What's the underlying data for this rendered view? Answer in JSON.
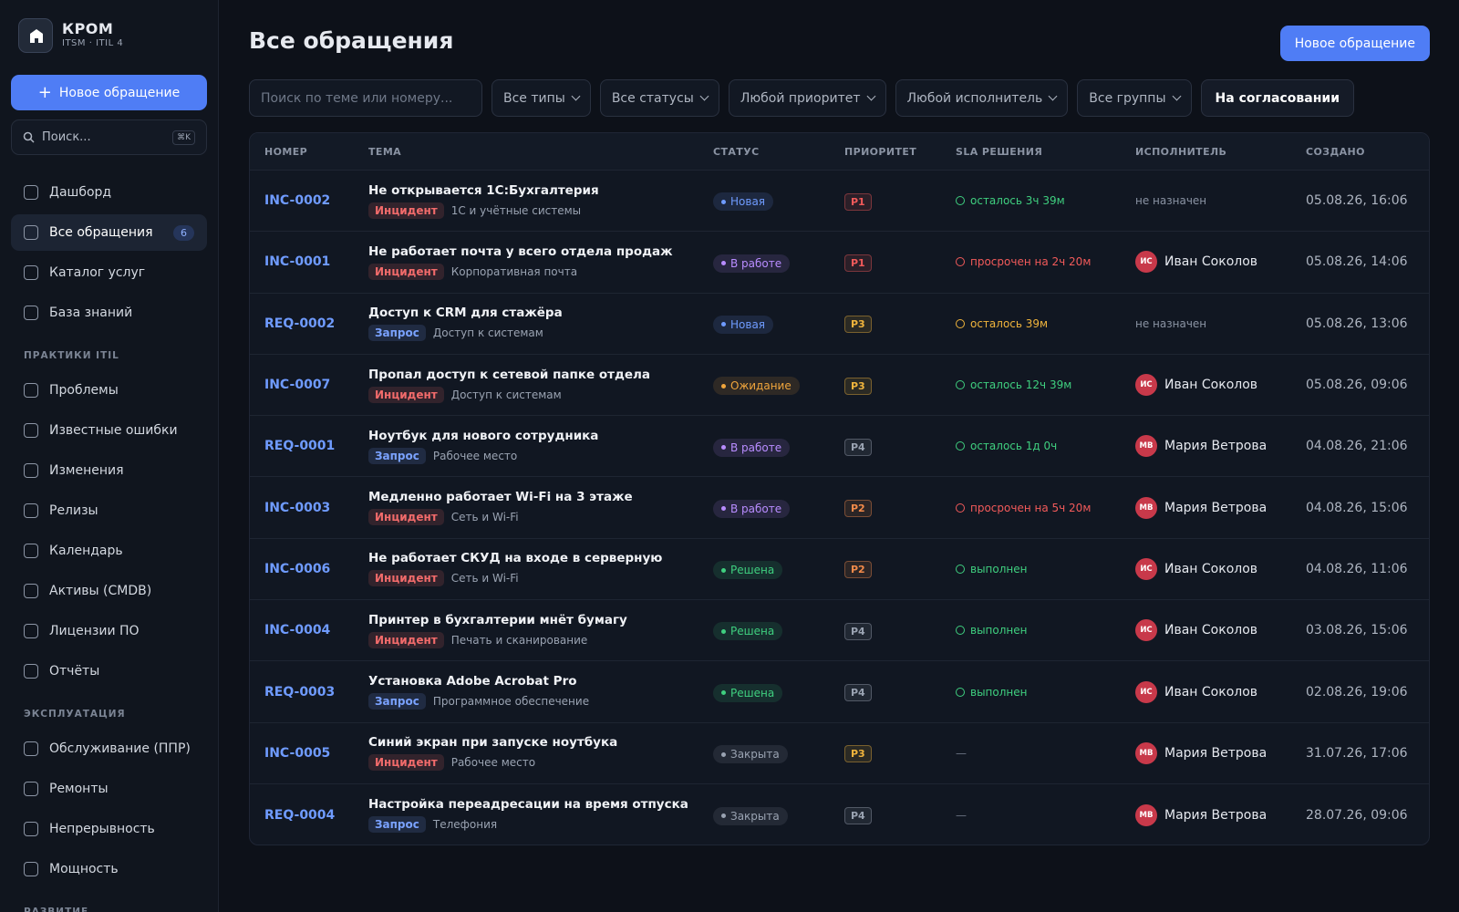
{
  "sidebar": {
    "brand": {
      "name": "КРОМ",
      "subtitle": "ITSM · ITIL 4"
    },
    "new_button": "Новое обращение",
    "search": {
      "placeholder": "Поиск...",
      "shortcut": "⌘K"
    },
    "nav": [
      {
        "label": "Дашборд"
      },
      {
        "label": "Все обращения",
        "badge": 6,
        "active": true
      },
      {
        "label": "Каталог услуг"
      },
      {
        "label": "База знаний"
      }
    ],
    "sections": [
      {
        "title": "ПРАКТИКИ ITIL",
        "items": [
          "Проблемы",
          "Известные ошибки",
          "Изменения",
          "Релизы",
          "Календарь",
          "Активы (CMDB)",
          "Лицензии ПО",
          "Отчёты"
        ]
      },
      {
        "title": "ЭКСПЛУАТАЦИЯ",
        "items": [
          "Обслуживание (ППР)",
          "Ремонты",
          "Непрерывность",
          "Мощность"
        ]
      },
      {
        "title": "РАЗВИТИЕ",
        "items": []
      }
    ]
  },
  "header": {
    "title": "Все обращения",
    "new_button": "Новое обращение"
  },
  "filters": {
    "search_placeholder": "Поиск по теме или номеру...",
    "dropdowns": [
      "Все типы",
      "Все статусы",
      "Любой приоритет",
      "Любой исполнитель",
      "Все группы"
    ],
    "toggle": "На согласовании"
  },
  "table": {
    "columns": [
      "НОМЕР",
      "ТЕМА",
      "СТАТУС",
      "ПРИОРИТЕТ",
      "SLA РЕШЕНИЯ",
      "ИСПОЛНИТЕЛЬ",
      "СОЗДАНО"
    ],
    "rows": [
      {
        "number": "INC-0002",
        "subject": "Не открывается 1С:Бухгалтерия",
        "type": {
          "label": "Инцидент",
          "color": "#f26b6b"
        },
        "category": "1С и учётные системы",
        "status": {
          "label": "Новая",
          "color": "#6f9bff"
        },
        "priority": {
          "label": "P1",
          "color": "#f25a5a"
        },
        "sla": {
          "text": "осталось 3ч 39м",
          "color": "#3fcf7f",
          "icon": true
        },
        "assignee": {
          "name": "не назначен"
        },
        "created": "05.08.26, 16:06"
      },
      {
        "number": "INC-0001",
        "subject": "Не работает почта у всего отдела продаж",
        "type": {
          "label": "Инцидент",
          "color": "#f26b6b"
        },
        "category": "Корпоративная почта",
        "status": {
          "label": "В работе",
          "color": "#b88cff"
        },
        "priority": {
          "label": "P1",
          "color": "#f25a5a"
        },
        "sla": {
          "text": "просрочен на 2ч 20м",
          "color": "#f25a5a",
          "icon": true
        },
        "assignee": {
          "initials": "ИС",
          "name": "Иван Соколов"
        },
        "created": "05.08.26, 14:06"
      },
      {
        "number": "REQ-0002",
        "subject": "Доступ к CRM для стажёра",
        "type": {
          "label": "Запрос",
          "color": "#7aa2ff"
        },
        "category": "Доступ к системам",
        "status": {
          "label": "Новая",
          "color": "#6f9bff"
        },
        "priority": {
          "label": "P3",
          "color": "#f0b43c"
        },
        "sla": {
          "text": "осталось 39м",
          "color": "#f0b43c",
          "icon": true
        },
        "assignee": {
          "name": "не назначен"
        },
        "created": "05.08.26, 13:06"
      },
      {
        "number": "INC-0007",
        "subject": "Пропал доступ к сетевой папке отдела",
        "type": {
          "label": "Инцидент",
          "color": "#f26b6b"
        },
        "category": "Доступ к системам",
        "status": {
          "label": "Ожидание",
          "color": "#f0a53c"
        },
        "priority": {
          "label": "P3",
          "color": "#f0b43c"
        },
        "sla": {
          "text": "осталось 12ч 39м",
          "color": "#3fcf7f",
          "icon": true
        },
        "assignee": {
          "initials": "ИС",
          "name": "Иван Соколов"
        },
        "created": "05.08.26, 09:06"
      },
      {
        "number": "REQ-0001",
        "subject": "Ноутбук для нового сотрудника",
        "type": {
          "label": "Запрос",
          "color": "#7aa2ff"
        },
        "category": "Рабочее место",
        "status": {
          "label": "В работе",
          "color": "#b88cff"
        },
        "priority": {
          "label": "P4",
          "color": "#9aa3b2"
        },
        "sla": {
          "text": "осталось 1д 0ч",
          "color": "#3fcf7f",
          "icon": true
        },
        "assignee": {
          "initials": "МВ",
          "name": "Мария Ветрова"
        },
        "created": "04.08.26, 21:06"
      },
      {
        "number": "INC-0003",
        "subject": "Медленно работает Wi-Fi на 3 этаже",
        "type": {
          "label": "Инцидент",
          "color": "#f26b6b"
        },
        "category": "Сеть и Wi-Fi",
        "status": {
          "label": "В работе",
          "color": "#b88cff"
        },
        "priority": {
          "label": "P2",
          "color": "#f28a4a"
        },
        "sla": {
          "text": "просрочен на 5ч 20м",
          "color": "#f25a5a",
          "icon": true
        },
        "assignee": {
          "initials": "МВ",
          "name": "Мария Ветрова"
        },
        "created": "04.08.26, 15:06"
      },
      {
        "number": "INC-0006",
        "subject": "Не работает СКУД на входе в серверную",
        "type": {
          "label": "Инцидент",
          "color": "#f26b6b"
        },
        "category": "Сеть и Wi-Fi",
        "status": {
          "label": "Решена",
          "color": "#3fcf7f"
        },
        "priority": {
          "label": "P2",
          "color": "#f28a4a"
        },
        "sla": {
          "text": "выполнен",
          "color": "#3fcf7f",
          "icon": true
        },
        "assignee": {
          "initials": "ИС",
          "name": "Иван Соколов"
        },
        "created": "04.08.26, 11:06"
      },
      {
        "number": "INC-0004",
        "subject": "Принтер в бухгалтерии мнёт бумагу",
        "type": {
          "label": "Инцидент",
          "color": "#f26b6b"
        },
        "category": "Печать и сканирование",
        "status": {
          "label": "Решена",
          "color": "#3fcf7f"
        },
        "priority": {
          "label": "P4",
          "color": "#9aa3b2"
        },
        "sla": {
          "text": "выполнен",
          "color": "#3fcf7f",
          "icon": true
        },
        "assignee": {
          "initials": "ИС",
          "name": "Иван Соколов"
        },
        "created": "03.08.26, 15:06"
      },
      {
        "number": "REQ-0003",
        "subject": "Установка Adobe Acrobat Pro",
        "type": {
          "label": "Запрос",
          "color": "#7aa2ff"
        },
        "category": "Программное обеспечение",
        "status": {
          "label": "Решена",
          "color": "#3fcf7f"
        },
        "priority": {
          "label": "P4",
          "color": "#9aa3b2"
        },
        "sla": {
          "text": "выполнен",
          "color": "#3fcf7f",
          "icon": true
        },
        "assignee": {
          "initials": "ИС",
          "name": "Иван Соколов"
        },
        "created": "02.08.26, 19:06"
      },
      {
        "number": "INC-0005",
        "subject": "Синий экран при запуске ноутбука",
        "type": {
          "label": "Инцидент",
          "color": "#f26b6b"
        },
        "category": "Рабочее место",
        "status": {
          "label": "Закрыта",
          "color": "#9aa3b2"
        },
        "priority": {
          "label": "P3",
          "color": "#f0b43c"
        },
        "sla": {
          "text": "—",
          "color": "#6b7382",
          "icon": false
        },
        "assignee": {
          "initials": "МВ",
          "name": "Мария Ветрова"
        },
        "created": "31.07.26, 17:06"
      },
      {
        "number": "REQ-0004",
        "subject": "Настройка переадресации на время отпуска",
        "type": {
          "label": "Запрос",
          "color": "#7aa2ff"
        },
        "category": "Телефония",
        "status": {
          "label": "Закрыта",
          "color": "#9aa3b2"
        },
        "priority": {
          "label": "P4",
          "color": "#9aa3b2"
        },
        "sla": {
          "text": "—",
          "color": "#6b7382",
          "icon": false
        },
        "assignee": {
          "initials": "МВ",
          "name": "Мария Ветрова"
        },
        "created": "28.07.26, 09:06"
      }
    ]
  }
}
